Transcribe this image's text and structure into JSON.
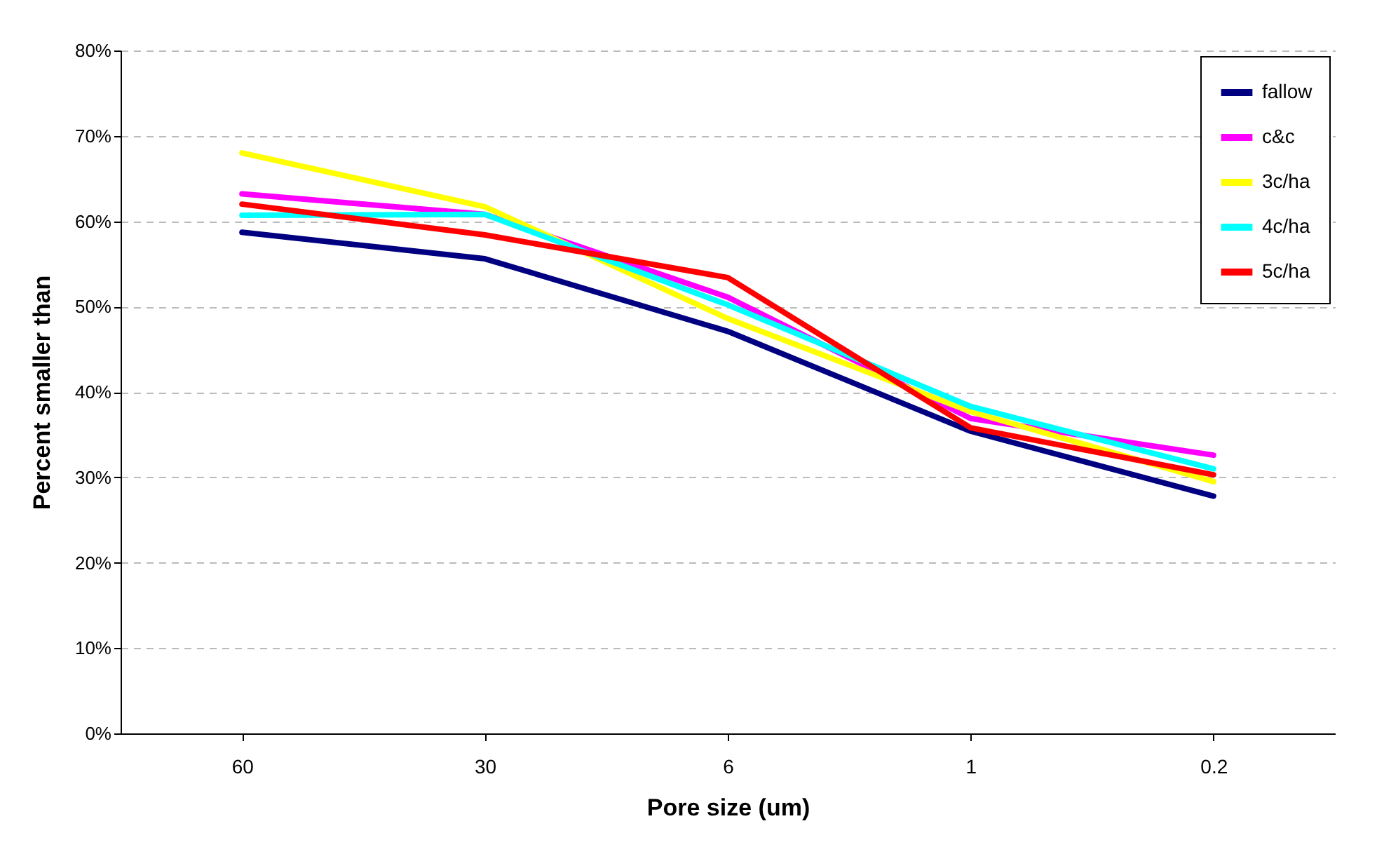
{
  "chart_data": {
    "type": "line",
    "xlabel": "Pore size (um)",
    "ylabel": "Percent smaller than",
    "categories": [
      "60",
      "30",
      "6",
      "1",
      "0.2"
    ],
    "series": [
      {
        "name": "fallow",
        "color": "#000080",
        "values": [
          58.7,
          55.6,
          47.1,
          35.4,
          27.8
        ]
      },
      {
        "name": "c&c",
        "color": "#ff00ff",
        "values": [
          63.2,
          60.8,
          51.1,
          36.9,
          32.6
        ]
      },
      {
        "name": "3c/ha",
        "color": "#ffff00",
        "values": [
          68.0,
          61.7,
          48.6,
          37.7,
          29.5
        ]
      },
      {
        "name": "4c/ha",
        "color": "#00ffff",
        "values": [
          60.7,
          60.8,
          50.2,
          38.3,
          31.0
        ]
      },
      {
        "name": "5c/ha",
        "color": "#ff0000",
        "values": [
          62.0,
          58.4,
          53.4,
          35.8,
          30.3
        ]
      }
    ],
    "ylim": [
      0,
      80
    ],
    "yticks": [
      {
        "value": 0,
        "label": "0%"
      },
      {
        "value": 10,
        "label": "10%"
      },
      {
        "value": 20,
        "label": "20%"
      },
      {
        "value": 30,
        "label": "30%"
      },
      {
        "value": 40,
        "label": "40%"
      },
      {
        "value": 50,
        "label": "50%"
      },
      {
        "value": 60,
        "label": "60%"
      },
      {
        "value": 70,
        "label": "70%"
      },
      {
        "value": 80,
        "label": "80%"
      }
    ],
    "grid": "y",
    "legend": "top right",
    "marker": "none",
    "line_style": "solid"
  }
}
